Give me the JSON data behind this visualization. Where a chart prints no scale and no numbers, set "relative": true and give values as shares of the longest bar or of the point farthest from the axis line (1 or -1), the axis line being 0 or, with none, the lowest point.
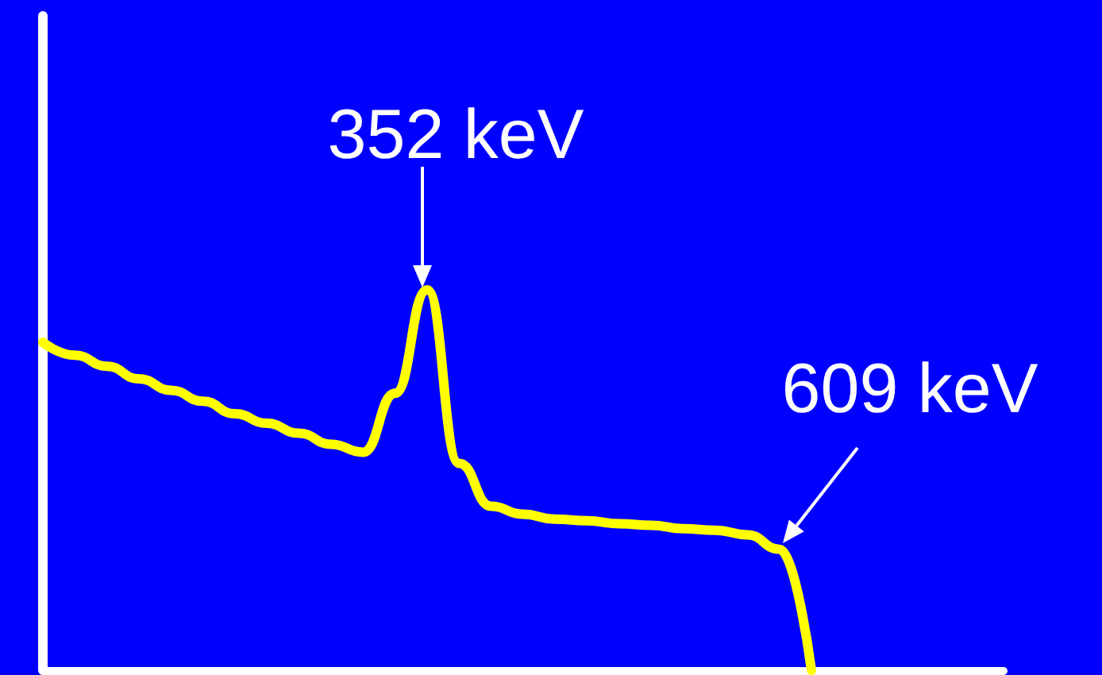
{
  "chart_data": {
    "type": "line",
    "relative": true,
    "color": "#ffff00",
    "marker": "none",
    "grid": false,
    "categories": [
      null,
      null,
      null,
      null,
      null,
      null,
      null,
      null,
      null,
      null,
      null,
      null,
      null,
      null,
      null,
      null,
      null,
      null,
      null,
      null,
      null,
      null,
      null,
      null,
      null,
      null,
      null,
      null,
      null,
      null,
      null
    ],
    "values": [
      0.862,
      0.828,
      0.799,
      0.766,
      0.736,
      0.707,
      0.674,
      0.649,
      0.623,
      0.594,
      0.573,
      0.728,
      1,
      0.544,
      0.431,
      0.41,
      0.397,
      0.393,
      0.385,
      0.381,
      0.372,
      0.368,
      0.356,
      0.318,
      0,
      null,
      null,
      null,
      null,
      null,
      null
    ],
    "annotations": [
      "352 keV",
      "609 keV"
    ]
  }
}
